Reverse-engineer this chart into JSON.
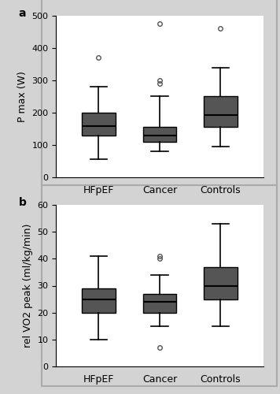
{
  "panel_a": {
    "label": "a",
    "ylabel": "P max (W)",
    "ylim": [
      0,
      500
    ],
    "yticks": [
      0,
      100,
      200,
      300,
      400,
      500
    ],
    "groups": [
      "HFpEF",
      "Cancer",
      "Controls"
    ],
    "boxes": [
      {
        "q1": 130,
        "median": 158,
        "q3": 200,
        "whislo": 55,
        "whishi": 280,
        "fliers": [
          370
        ]
      },
      {
        "q1": 110,
        "median": 130,
        "q3": 155,
        "whislo": 80,
        "whishi": 250,
        "fliers": [
          300,
          290,
          475
        ]
      },
      {
        "q1": 155,
        "median": 193,
        "q3": 250,
        "whislo": 95,
        "whishi": 340,
        "fliers": [
          460
        ]
      }
    ],
    "box_color": "#555555"
  },
  "panel_b": {
    "label": "b",
    "ylabel": "rel VO2 peak (ml/kg/min)",
    "ylim": [
      0,
      60
    ],
    "yticks": [
      0,
      10,
      20,
      30,
      40,
      50,
      60
    ],
    "groups": [
      "HFpEF",
      "Cancer",
      "Controls"
    ],
    "boxes": [
      {
        "q1": 20,
        "median": 25,
        "q3": 29,
        "whislo": 10,
        "whishi": 41,
        "fliers": []
      },
      {
        "q1": 20,
        "median": 24,
        "q3": 27,
        "whislo": 15,
        "whishi": 34,
        "fliers": [
          40,
          41,
          7
        ]
      },
      {
        "q1": 25,
        "median": 30,
        "q3": 37,
        "whislo": 15,
        "whishi": 53,
        "fliers": []
      }
    ],
    "box_color": "#555555"
  },
  "bg_color": "#d3d3d3",
  "plot_bg": "#ffffff",
  "box_edge": "#000000",
  "median_color": "#000000",
  "whisker_color": "#000000",
  "cap_color": "#000000",
  "flier_marker": "o",
  "flier_facecolor": "none",
  "flier_edgecolor": "#555555",
  "flier_markersize": 4,
  "label_fontsize": 9,
  "tick_fontsize": 8,
  "panel_label_fontsize": 10
}
